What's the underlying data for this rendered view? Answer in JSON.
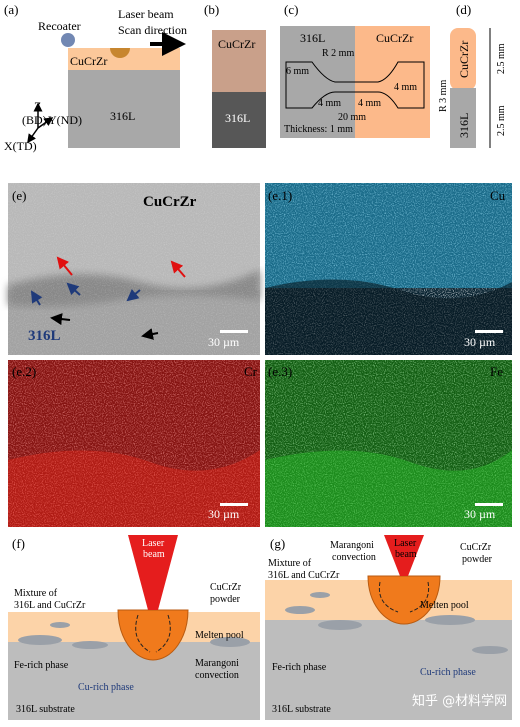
{
  "a": {
    "tag": "(a)",
    "recoater": "Recoater",
    "laser": "Laser beam",
    "scan": "Scan direction",
    "top": "CuCrZr",
    "bottom": "316L",
    "z": "Z",
    "bd": "(BD)",
    "y": "Y(ND)",
    "x": "X(TD)"
  },
  "b": {
    "tag": "(b)",
    "top": "CuCrZr",
    "bottom": "316L"
  },
  "c": {
    "tag": "(c)",
    "left": "316L",
    "right": "CuCrZr",
    "radius": "R 2 mm",
    "d1": "6 mm",
    "d2": "4 mm",
    "d3": "4 mm",
    "d4": "4 mm",
    "d5": "20 mm",
    "thickness": "Thickness: 1 mm"
  },
  "d": {
    "tag": "(d)",
    "top": "CuCrZr",
    "bottom": "316L",
    "radius": "R 3 mm",
    "h1": "2.5 mm",
    "h2": "2.5 mm"
  },
  "e": {
    "tag": "(e)",
    "top": "CuCrZr",
    "bottom": "316L",
    "scale": "30 µm"
  },
  "e1": {
    "tag": "(e.1)",
    "element": "Cu",
    "scale": "30 µm"
  },
  "e2": {
    "tag": "(e.2)",
    "element": "Cr",
    "scale": "30 µm"
  },
  "e3": {
    "tag": "(e.3)",
    "element": "Fe",
    "scale": "30 µm"
  },
  "f": {
    "tag": "(f)",
    "laser": [
      "Laser",
      "beam"
    ],
    "powder": [
      "CuCrZr",
      "powder"
    ],
    "mixture": [
      "Mixture of",
      "316L and CuCrZr"
    ],
    "pool": "Melten pool",
    "marangoni": [
      "Marangoni",
      "convection"
    ],
    "fe": "Fe-rich phase",
    "cu": "Cu-rich phase",
    "substrate": "316L substrate"
  },
  "g": {
    "tag": "(g)",
    "laser": [
      "Laser",
      "beam"
    ],
    "powder": [
      "CuCrZr",
      "powder"
    ],
    "mixture": [
      "Mixture of",
      "316L and CuCrZr"
    ],
    "marangoni": [
      "Marangoni",
      "convection"
    ],
    "pool": "Melten pool",
    "fe": "Fe-rich phase",
    "cu": "Cu-rich phase",
    "substrate": "316L substrate"
  },
  "watermark": "知乎 @材料学网"
}
